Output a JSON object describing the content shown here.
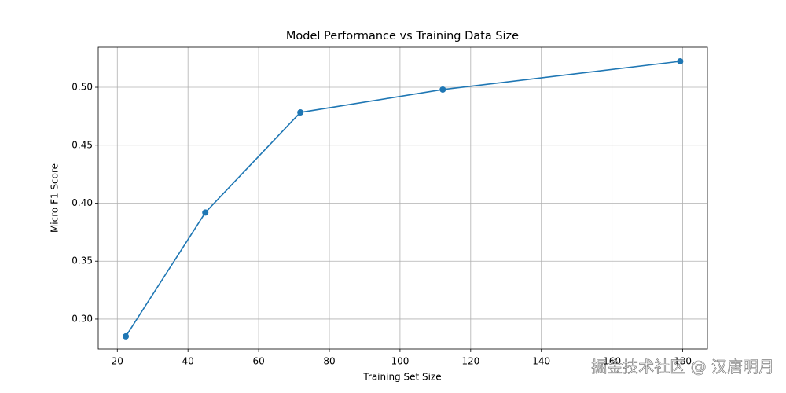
{
  "chart_data": {
    "type": "line",
    "title": "Model Performance vs Training Data Size",
    "x_label": "Training Set Size",
    "y_label": "Micro F1 Score",
    "x": [
      22.4,
      44.9,
      71.8,
      112.1,
      179.3
    ],
    "series": [
      {
        "name": "Micro F1",
        "color": "#1f77b4",
        "values": [
          0.2851,
          0.3919,
          0.4783,
          0.498,
          0.5224
        ]
      }
    ],
    "xlim": [
      14.6,
      187.0
    ],
    "ylim": [
      0.2742,
      0.5346
    ],
    "xticks": [
      20,
      40,
      60,
      80,
      100,
      120,
      140,
      160,
      180
    ],
    "yticks": [
      {
        "value": 0.3,
        "label": "0.30"
      },
      {
        "value": 0.35,
        "label": "0.35"
      },
      {
        "value": 0.4,
        "label": "0.40"
      },
      {
        "value": 0.45,
        "label": "0.45"
      },
      {
        "value": 0.5,
        "label": "0.50"
      }
    ],
    "grid": true,
    "marker": "o"
  },
  "watermark": "掘金技术社区 @ 汉唐明月"
}
